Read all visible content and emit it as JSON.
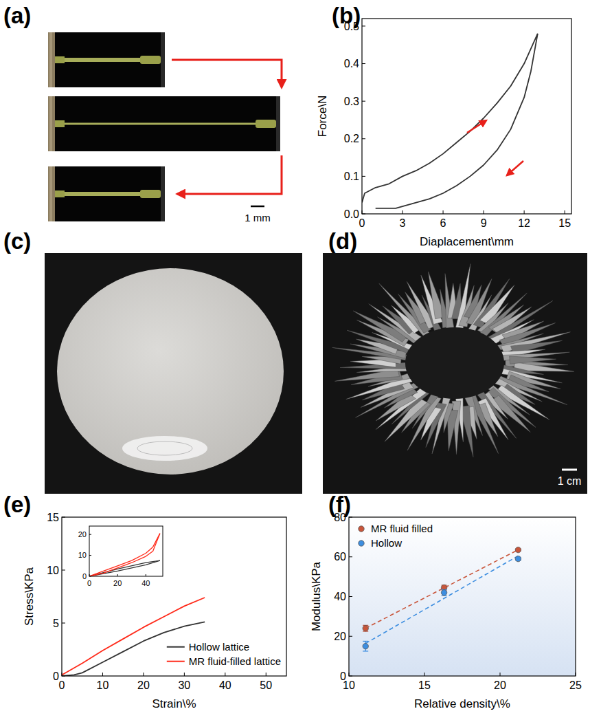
{
  "panel_labels": [
    "(a)",
    "(b)",
    "(c)",
    "(d)",
    "(e)",
    "(f)"
  ],
  "photos": {
    "a": {
      "scale_bar": "1 mm"
    },
    "d": {
      "scale_bar": "1 cm"
    }
  },
  "chart_data": [
    {
      "type": "line",
      "x_label": "Diaplacement\\mm",
      "y_label": "Force\\N",
      "xlim": [
        0,
        15.5
      ],
      "xticks": [
        0,
        3,
        6,
        9,
        12,
        15
      ],
      "ylim": [
        0,
        0.52
      ],
      "yticks": [
        {
          "value": 0,
          "label": "0.0"
        },
        0.1,
        0.2,
        0.3,
        0.4,
        0.5
      ],
      "series": [
        {
          "color": "#333333",
          "x": [
            0,
            0.2,
            1,
            2,
            3,
            4,
            5,
            6,
            7,
            8,
            9,
            10,
            11,
            12,
            12.5,
            13
          ],
          "values": [
            0.03,
            0.055,
            0.07,
            0.08,
            0.1,
            0.115,
            0.135,
            0.16,
            0.19,
            0.22,
            0.255,
            0.295,
            0.34,
            0.4,
            0.44,
            0.48
          ]
        },
        {
          "color": "#333333",
          "x": [
            13,
            12.5,
            12,
            11,
            10,
            9,
            8,
            7,
            6,
            5,
            4,
            3,
            2.5,
            1
          ],
          "values": [
            0.48,
            0.38,
            0.31,
            0.225,
            0.17,
            0.13,
            0.1,
            0.075,
            0.055,
            0.04,
            0.03,
            0.02,
            0.015,
            0.015
          ]
        }
      ]
    },
    {
      "type": "line",
      "x_label": "Strain\\%",
      "y_label": "Stress\\KPa",
      "xlim": [
        0,
        55
      ],
      "xticks": [
        0,
        10,
        20,
        30,
        40,
        50
      ],
      "ylim": [
        0,
        15
      ],
      "yticks": [
        0,
        5,
        10,
        15
      ],
      "legend": "lower right",
      "series": [
        {
          "name": "Hollow lattice",
          "color": "#333333",
          "x": [
            0,
            3,
            5,
            10,
            15,
            20,
            25,
            30,
            35
          ],
          "values": [
            0,
            0.1,
            0.3,
            1.3,
            2.3,
            3.3,
            4.1,
            4.7,
            5.1
          ]
        },
        {
          "name": "MR fluid-filled lattice",
          "color": "#ff2a1a",
          "x": [
            0,
            5,
            10,
            15,
            20,
            25,
            30,
            35
          ],
          "values": [
            0.1,
            1.2,
            2.4,
            3.5,
            4.6,
            5.6,
            6.6,
            7.4
          ]
        }
      ]
    },
    {
      "type": "line",
      "xlim": [
        0,
        52
      ],
      "xticks": [
        0,
        20,
        40
      ],
      "ylim": [
        0,
        24
      ],
      "yticks": [
        0,
        10,
        20
      ],
      "series": [
        {
          "color": "#333333",
          "x": [
            0,
            20,
            40,
            50
          ],
          "values": [
            0,
            3.5,
            6.5,
            7.5
          ]
        },
        {
          "color": "#333333",
          "x": [
            50,
            40,
            20,
            0
          ],
          "values": [
            7.5,
            5.5,
            2.5,
            0
          ]
        },
        {
          "color": "#ff2a1a",
          "x": [
            0,
            10,
            20,
            30,
            40,
            45,
            50
          ],
          "values": [
            0,
            2.5,
            5,
            7.5,
            11,
            14,
            20.5
          ]
        },
        {
          "color": "#ff2a1a",
          "x": [
            50,
            45,
            40,
            30,
            20,
            10,
            0
          ],
          "values": [
            20.5,
            12,
            9.5,
            6.5,
            4,
            1.5,
            0
          ]
        }
      ]
    },
    {
      "type": "scatter",
      "x_label": "Relative density\\%",
      "y_label": "Modulus\\KPa",
      "xlim": [
        10,
        25
      ],
      "xticks": [
        10,
        15,
        20,
        25
      ],
      "ylim": [
        0,
        80
      ],
      "yticks": [
        0,
        20,
        40,
        60,
        80
      ],
      "legend": "upper left",
      "series": [
        {
          "name": "MR fluid filled",
          "color": "#c9553a",
          "marker": "circle",
          "line_style": "dashed",
          "x": [
            11.1,
            16.3,
            21.2
          ],
          "values": [
            24,
            44.5,
            63.5
          ],
          "error": [
            1.5,
            1.2,
            0.5
          ]
        },
        {
          "name": "Hollow",
          "color": "#3d8ee0",
          "marker": "circle",
          "line_style": "dashed",
          "x": [
            11.1,
            16.3,
            21.2
          ],
          "values": [
            15,
            42,
            59
          ],
          "error": [
            2.5,
            1.5,
            0.8
          ]
        }
      ]
    }
  ]
}
